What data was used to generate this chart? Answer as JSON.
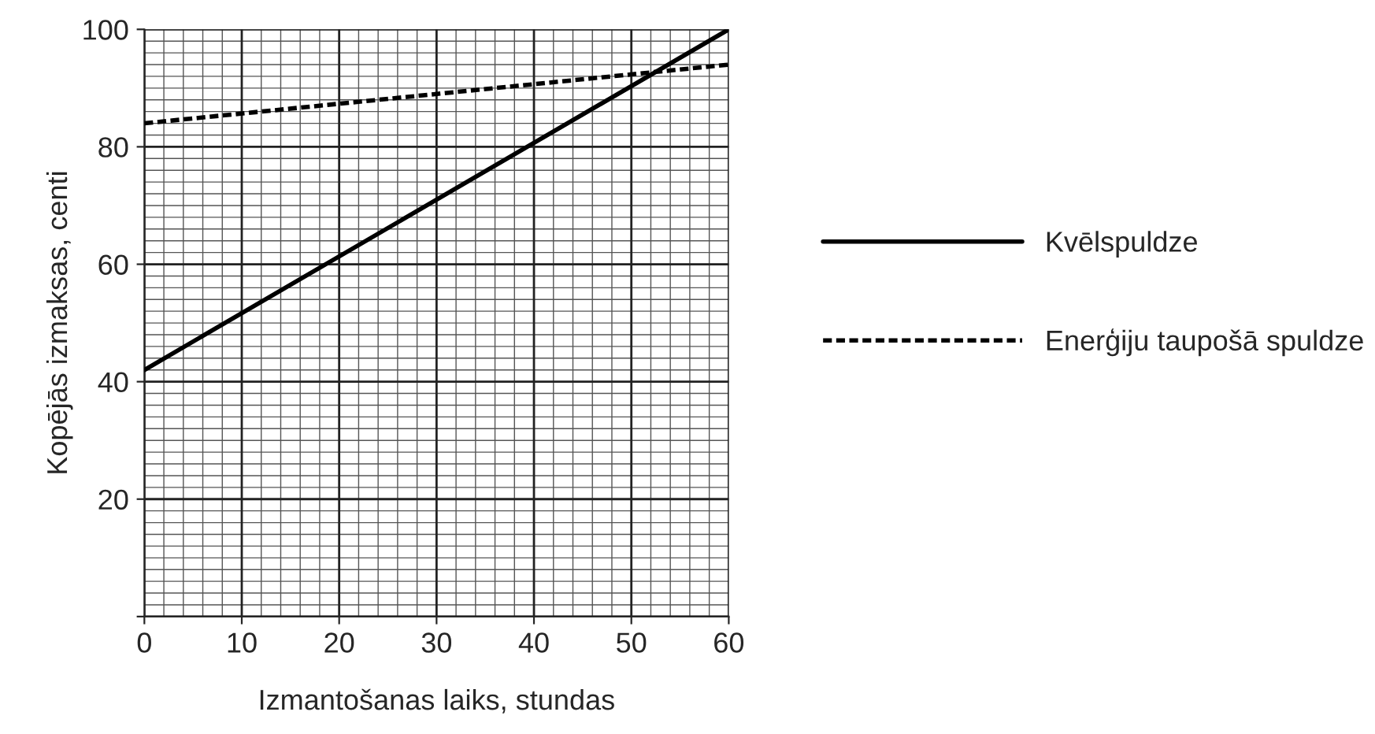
{
  "chart_data": {
    "type": "line",
    "xlabel": "Izmantošanas laiks, stundas",
    "ylabel": "Kopējās izmaksas, centi",
    "x": [
      0,
      60
    ],
    "series": [
      {
        "name": "Kvēlspuldze",
        "color": "#000000",
        "values": [
          42,
          100
        ],
        "line_style": "solid"
      },
      {
        "name": "Enerģiju taupošā spuldze",
        "color": "#000000",
        "values": [
          84,
          94
        ],
        "line_style": "dashed"
      }
    ],
    "xlim": [
      0,
      60
    ],
    "xticks": [
      0,
      10,
      20,
      30,
      40,
      50,
      60
    ],
    "ylim": [
      0,
      100
    ],
    "yticks": [
      {
        "value": 0,
        "label": null
      },
      20,
      40,
      60,
      80,
      100
    ],
    "grid": true,
    "legend": "right",
    "marker": "none"
  }
}
